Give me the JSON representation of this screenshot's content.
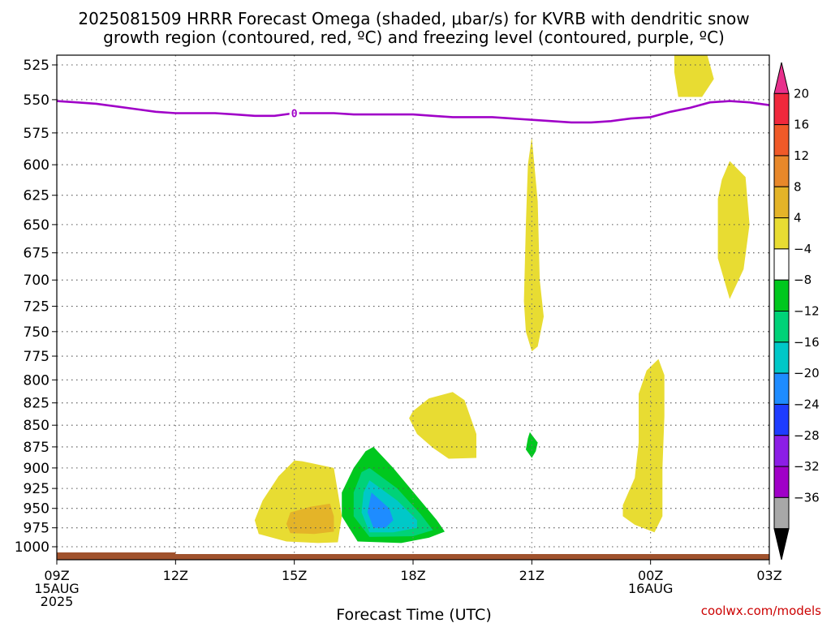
{
  "title": {
    "line1": "2025081509 HRRR Forecast Omega (shaded, μbar/s) for KVRB with dendritic snow",
    "line2": "growth region (contoured, red, ºC) and freezing level (contoured, purple, ºC)"
  },
  "chart_data": {
    "type": "heatmap",
    "title": "2025081509 HRRR Forecast Omega (shaded, μbar/s) for KVRB with dendritic snow growth region (contoured, red, ºC) and freezing level (contoured, purple, ºC)",
    "xlabel": "Forecast Time (UTC)",
    "ylabel": "",
    "xlim": [
      9,
      27
    ],
    "ylim": [
      1015,
      515
    ],
    "y_scale": "log pressure (inverted)",
    "grid": true,
    "x_ticks": [
      {
        "t": 9,
        "lines": [
          "09Z",
          "15AUG",
          "2025"
        ]
      },
      {
        "t": 12,
        "lines": [
          "12Z"
        ]
      },
      {
        "t": 15,
        "lines": [
          "15Z"
        ]
      },
      {
        "t": 18,
        "lines": [
          "18Z"
        ]
      },
      {
        "t": 21,
        "lines": [
          "21Z"
        ]
      },
      {
        "t": 24,
        "lines": [
          "00Z",
          "16AUG"
        ]
      },
      {
        "t": 27,
        "lines": [
          "03Z"
        ]
      }
    ],
    "y_ticks": [
      525,
      550,
      575,
      600,
      625,
      650,
      675,
      700,
      725,
      750,
      775,
      800,
      825,
      850,
      875,
      900,
      925,
      950,
      975,
      1000
    ],
    "colorbar": {
      "labels": [
        "20",
        "16",
        "12",
        "8",
        "4",
        "−4",
        "−8",
        "−12",
        "−16",
        "−20",
        "−24",
        "−28",
        "−32",
        "−36"
      ],
      "bins": [
        {
          "color": "#e8308c",
          "top": "arrow"
        },
        {
          "color": "#f0283c"
        },
        {
          "color": "#f05a28"
        },
        {
          "color": "#e8882a"
        },
        {
          "color": "#e4b428"
        },
        {
          "color": "#e8dc32"
        },
        {
          "color": "#ffffff"
        },
        {
          "color": "#00c81e"
        },
        {
          "color": "#00d278"
        },
        {
          "color": "#00c8c8"
        },
        {
          "color": "#1e8cff"
        },
        {
          "color": "#1e3cff"
        },
        {
          "color": "#8c1ee6"
        },
        {
          "color": "#a000c8"
        },
        {
          "color": "#a8a8a8"
        },
        {
          "color": "#000000",
          "bottom": "arrow"
        }
      ]
    },
    "freezing_level": {
      "label": "0",
      "color": "#a000c8",
      "points": [
        [
          9.0,
          551
        ],
        [
          9.5,
          552
        ],
        [
          10.0,
          553
        ],
        [
          10.5,
          555
        ],
        [
          11.0,
          557
        ],
        [
          11.5,
          559
        ],
        [
          12.0,
          560
        ],
        [
          12.5,
          560
        ],
        [
          13.0,
          560
        ],
        [
          13.5,
          561
        ],
        [
          14.0,
          562
        ],
        [
          14.5,
          562
        ],
        [
          15.0,
          560
        ],
        [
          15.5,
          560
        ],
        [
          16.0,
          560
        ],
        [
          16.5,
          561
        ],
        [
          17.0,
          561
        ],
        [
          17.5,
          561
        ],
        [
          18.0,
          561
        ],
        [
          18.5,
          562
        ],
        [
          19.0,
          563
        ],
        [
          19.5,
          563
        ],
        [
          20.0,
          563
        ],
        [
          20.5,
          564
        ],
        [
          21.0,
          565
        ],
        [
          21.5,
          566
        ],
        [
          22.0,
          567
        ],
        [
          22.5,
          567
        ],
        [
          23.0,
          566
        ],
        [
          23.5,
          564
        ],
        [
          24.0,
          563
        ],
        [
          24.5,
          559
        ],
        [
          25.0,
          556
        ],
        [
          25.5,
          552
        ],
        [
          26.0,
          551
        ],
        [
          26.5,
          552
        ],
        [
          27.0,
          554
        ]
      ]
    },
    "omega_regions": [
      {
        "level": 4,
        "color": "#e8dc32",
        "points": [
          [
            24.6,
            515
          ],
          [
            25.4,
            515
          ],
          [
            25.6,
            535
          ],
          [
            25.3,
            548
          ],
          [
            24.7,
            548
          ],
          [
            24.6,
            530
          ]
        ]
      },
      {
        "level": 4,
        "color": "#e8dc32",
        "points": [
          [
            25.8,
            612
          ],
          [
            26.0,
            597
          ],
          [
            26.4,
            610
          ],
          [
            26.5,
            650
          ],
          [
            26.35,
            690
          ],
          [
            26.0,
            718
          ],
          [
            25.7,
            680
          ],
          [
            25.7,
            628
          ]
        ]
      },
      {
        "level": 4,
        "color": "#e8dc32",
        "points": [
          [
            21.0,
            578
          ],
          [
            21.15,
            630
          ],
          [
            21.2,
            700
          ],
          [
            21.3,
            735
          ],
          [
            21.15,
            765
          ],
          [
            21.0,
            770
          ],
          [
            20.85,
            750
          ],
          [
            20.8,
            720
          ],
          [
            20.85,
            650
          ],
          [
            20.9,
            600
          ]
        ]
      },
      {
        "level": 4,
        "color": "#e8dc32",
        "points": [
          [
            23.7,
            815
          ],
          [
            23.9,
            790
          ],
          [
            24.2,
            778
          ],
          [
            24.35,
            795
          ],
          [
            24.35,
            840
          ],
          [
            24.3,
            900
          ],
          [
            24.3,
            960
          ],
          [
            24.1,
            981
          ],
          [
            23.6,
            971
          ],
          [
            23.3,
            960
          ],
          [
            23.3,
            946
          ],
          [
            23.6,
            912
          ],
          [
            23.7,
            870
          ]
        ]
      },
      {
        "level": 4,
        "color": "#e8dc32",
        "points": [
          [
            18.0,
            834
          ],
          [
            18.4,
            820
          ],
          [
            19.0,
            813
          ],
          [
            19.3,
            822
          ],
          [
            19.6,
            860
          ],
          [
            19.6,
            888
          ],
          [
            18.9,
            889
          ],
          [
            18.5,
            876
          ],
          [
            18.1,
            860
          ],
          [
            17.9,
            842
          ]
        ]
      },
      {
        "level": 4,
        "color": "#e8dc32",
        "points": [
          [
            15.0,
            891
          ],
          [
            14.6,
            910
          ],
          [
            14.2,
            940
          ],
          [
            14.0,
            965
          ],
          [
            14.1,
            983
          ],
          [
            14.8,
            993
          ],
          [
            15.6,
            995
          ],
          [
            16.1,
            994
          ],
          [
            16.2,
            960
          ],
          [
            16.0,
            900
          ],
          [
            15.2,
            892
          ]
        ]
      },
      {
        "level": 8,
        "color": "#e4b428",
        "points": [
          [
            14.9,
            955
          ],
          [
            15.4,
            948
          ],
          [
            15.9,
            944
          ],
          [
            16.0,
            960
          ],
          [
            16.0,
            980
          ],
          [
            15.5,
            983
          ],
          [
            14.9,
            982
          ],
          [
            14.8,
            970
          ]
        ]
      },
      {
        "level": -4,
        "color": "#00c81e",
        "points": [
          [
            17.0,
            875
          ],
          [
            17.5,
            900
          ],
          [
            18.1,
            935
          ],
          [
            18.6,
            965
          ],
          [
            18.8,
            980
          ],
          [
            18.4,
            988
          ],
          [
            17.7,
            995
          ],
          [
            16.6,
            993
          ],
          [
            16.2,
            960
          ],
          [
            16.2,
            930
          ],
          [
            16.5,
            900
          ],
          [
            16.8,
            880
          ]
        ]
      },
      {
        "level": -4,
        "color": "#00c81e",
        "points": [
          [
            20.95,
            858
          ],
          [
            21.15,
            870
          ],
          [
            21.1,
            880
          ],
          [
            21.0,
            888
          ],
          [
            20.85,
            878
          ],
          [
            20.9,
            865
          ]
        ]
      },
      {
        "level": -8,
        "color": "#00d278",
        "points": [
          [
            16.9,
            900
          ],
          [
            17.6,
            925
          ],
          [
            18.2,
            958
          ],
          [
            18.5,
            978
          ],
          [
            18.0,
            986
          ],
          [
            16.9,
            987
          ],
          [
            16.5,
            960
          ],
          [
            16.5,
            930
          ],
          [
            16.7,
            905
          ]
        ]
      },
      {
        "level": -12,
        "color": "#00c8c8",
        "points": [
          [
            16.9,
            915
          ],
          [
            17.6,
            940
          ],
          [
            18.1,
            965
          ],
          [
            18.1,
            975
          ],
          [
            17.5,
            981
          ],
          [
            16.9,
            981
          ],
          [
            16.7,
            955
          ],
          [
            16.75,
            930
          ]
        ]
      },
      {
        "level": -16,
        "color": "#1e8cff",
        "points": [
          [
            16.95,
            930
          ],
          [
            17.4,
            950
          ],
          [
            17.5,
            965
          ],
          [
            17.3,
            975
          ],
          [
            17.0,
            975
          ],
          [
            16.85,
            955
          ]
        ]
      }
    ],
    "surface_band": {
      "color": "#a0522d",
      "pressure": 1012
    }
  },
  "credit": "coolwx.com/models"
}
